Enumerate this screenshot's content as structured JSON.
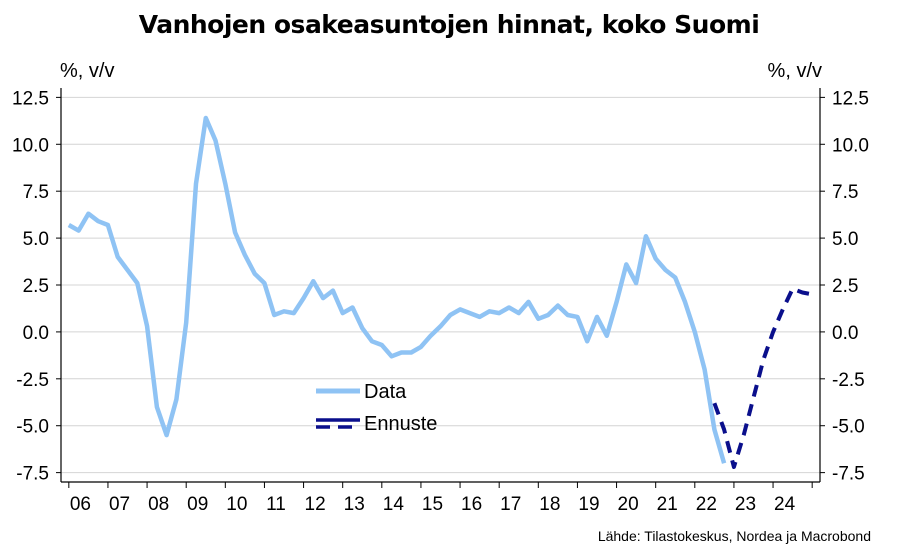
{
  "chart_data": {
    "type": "line",
    "title": "Vanhojen osakeasuntojen hinnat, koko Suomi",
    "ylabel_left": "%, v/v",
    "ylabel_right": "%, v/v",
    "source": "Lähde: Tilastokeskus, Nordea ja Macrobond",
    "ylim": [
      -8,
      13
    ],
    "xlim": [
      2005.8,
      2025.2
    ],
    "yticks": [
      "12.5",
      "10.0",
      "7.5",
      "5.0",
      "2.5",
      "0.0",
      "-2.5",
      "-5.0",
      "-7.5"
    ],
    "xticks": [
      "06",
      "07",
      "08",
      "09",
      "10",
      "11",
      "12",
      "13",
      "14",
      "15",
      "16",
      "17",
      "18",
      "19",
      "20",
      "21",
      "22",
      "23",
      "24"
    ],
    "grid": "horizontal",
    "legend_position": "lower-center",
    "series": [
      {
        "name": "Data",
        "color": "#8fc3f4",
        "style": "solid",
        "x": [
          2006.0,
          2006.25,
          2006.5,
          2006.75,
          2007.0,
          2007.25,
          2007.5,
          2007.75,
          2008.0,
          2008.25,
          2008.5,
          2008.75,
          2009.0,
          2009.25,
          2009.5,
          2009.75,
          2010.0,
          2010.25,
          2010.5,
          2010.75,
          2011.0,
          2011.25,
          2011.5,
          2011.75,
          2012.0,
          2012.25,
          2012.5,
          2012.75,
          2013.0,
          2013.25,
          2013.5,
          2013.75,
          2014.0,
          2014.25,
          2014.5,
          2014.75,
          2015.0,
          2015.25,
          2015.5,
          2015.75,
          2016.0,
          2016.25,
          2016.5,
          2016.75,
          2017.0,
          2017.25,
          2017.5,
          2017.75,
          2018.0,
          2018.25,
          2018.5,
          2018.75,
          2019.0,
          2019.25,
          2019.5,
          2019.75,
          2020.0,
          2020.25,
          2020.5,
          2020.75,
          2021.0,
          2021.25,
          2021.5,
          2021.75,
          2022.0,
          2022.25,
          2022.5,
          2022.75,
          2023.0,
          2023.25,
          2023.5
        ],
        "y": [
          5.7,
          5.4,
          6.3,
          5.9,
          5.7,
          4.0,
          3.3,
          2.6,
          0.3,
          -4.0,
          -5.5,
          -3.6,
          0.5,
          7.9,
          11.4,
          10.2,
          7.9,
          5.3,
          4.1,
          3.1,
          2.6,
          0.9,
          1.1,
          1.0,
          1.8,
          2.7,
          1.8,
          2.2,
          1.0,
          1.3,
          0.2,
          -0.5,
          -0.7,
          -1.3,
          -1.1,
          -1.1,
          -0.8,
          -0.2,
          0.3,
          0.9,
          1.2,
          1.0,
          0.8,
          1.1,
          1.0,
          1.3,
          1.0,
          1.6,
          0.7,
          0.9,
          1.4,
          0.9,
          0.8,
          -0.5,
          0.8,
          -0.2,
          1.6,
          3.6,
          2.6,
          5.1,
          3.9,
          3.3,
          2.9,
          1.6,
          0.0,
          -2.0,
          -5.2,
          -7.0,
          null,
          null,
          null
        ],
        "note": "ends at 2023.0"
      },
      {
        "name": "Ennuste",
        "color": "#0a0f8c",
        "style": "dashed",
        "x": [
          2022.5,
          2022.75,
          2023.0,
          2023.25,
          2023.5,
          2023.75,
          2024.0,
          2024.25,
          2024.5,
          2024.75,
          2025.0
        ],
        "y": [
          -3.8,
          -5.2,
          -7.2,
          -5.5,
          -3.5,
          -1.5,
          0.0,
          1.2,
          2.3,
          2.1,
          2.0
        ]
      }
    ]
  }
}
